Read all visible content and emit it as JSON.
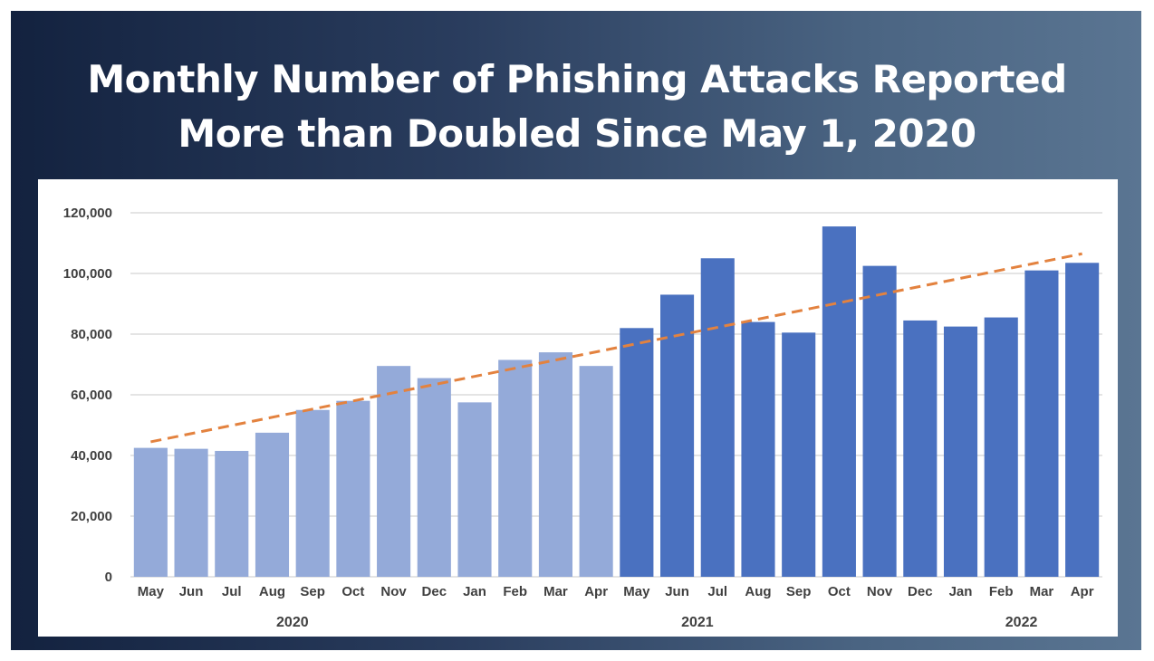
{
  "title": {
    "line1": "Monthly Number of Phishing Attacks Reported",
    "line2": "More than Doubled Since May 1, 2020"
  },
  "colors": {
    "bar_light": "#94aad9",
    "bar_dark": "#4a71c0",
    "trend": "#e3823f",
    "grid": "#c8c8c8",
    "text": "#404040"
  },
  "chart_data": {
    "type": "bar",
    "categories": [
      "May",
      "Jun",
      "Jul",
      "Aug",
      "Sep",
      "Oct",
      "Nov",
      "Dec",
      "Jan",
      "Feb",
      "Mar",
      "Apr",
      "May",
      "Jun",
      "Jul",
      "Aug",
      "Sep",
      "Oct",
      "Nov",
      "Dec",
      "Jan",
      "Feb",
      "Mar",
      "Apr"
    ],
    "values": [
      42500,
      42200,
      41500,
      47500,
      55000,
      58000,
      69500,
      65500,
      57500,
      71500,
      74000,
      69500,
      82000,
      93000,
      105000,
      84000,
      80500,
      115500,
      102500,
      84500,
      82500,
      85500,
      101000,
      103500
    ],
    "shading": [
      "light",
      "light",
      "light",
      "light",
      "light",
      "light",
      "light",
      "light",
      "light",
      "light",
      "light",
      "light",
      "dark",
      "dark",
      "dark",
      "dark",
      "dark",
      "dark",
      "dark",
      "dark",
      "dark",
      "dark",
      "dark",
      "dark"
    ],
    "year_labels": [
      "2020",
      "2021",
      "2022"
    ],
    "year_label_positions": [
      3.5,
      13.5,
      21.5
    ],
    "trendline": {
      "style": "dashed",
      "start": 44500,
      "end": 106500
    },
    "ylim": [
      0,
      120000
    ],
    "yticks": [
      0,
      20000,
      40000,
      60000,
      80000,
      100000,
      120000
    ],
    "ytick_labels": [
      "0",
      "20,000",
      "40,000",
      "60,000",
      "80,000",
      "100,000",
      "120,000"
    ],
    "grid": true,
    "legend": false,
    "xlabel": "",
    "ylabel": ""
  }
}
